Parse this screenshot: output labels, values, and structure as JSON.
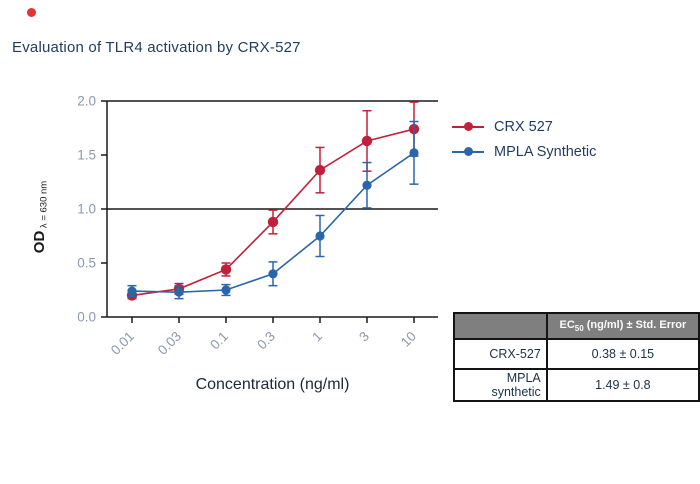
{
  "red_dot": {
    "color": "#e8312e"
  },
  "title": "Evaluation of TLR4 activation by CRX-527",
  "chart_data": {
    "type": "line",
    "xlabel": "Concentration (ng/ml)",
    "ylabel_main": "OD",
    "ylabel_sub": "λ = 630 nm",
    "x_categories": [
      "0.01",
      "0.03",
      "0.1",
      "0.3",
      "1",
      "3",
      "10"
    ],
    "x_scale": "log-categorical",
    "yticks": [
      "0.0",
      "0.5",
      "1.0",
      "1.5",
      "2.0"
    ],
    "ylim": [
      0,
      2
    ],
    "reference_lines": [
      1.0,
      2.0
    ],
    "grid": "off",
    "legend_position": "right-top",
    "series": [
      {
        "name": "CRX 527",
        "color": "#c2203a",
        "values": [
          0.2,
          0.26,
          0.44,
          0.88,
          1.36,
          1.63,
          1.74
        ],
        "errors": [
          0.03,
          0.05,
          0.06,
          0.11,
          0.21,
          0.28,
          0.25
        ]
      },
      {
        "name": "MPLA Synthetic",
        "color": "#2a66ac",
        "values": [
          0.24,
          0.23,
          0.25,
          0.4,
          0.75,
          1.22,
          1.52
        ],
        "errors": [
          0.05,
          0.06,
          0.05,
          0.11,
          0.19,
          0.21,
          0.29
        ]
      }
    ]
  },
  "table": {
    "header": {
      "prefix": "EC",
      "sub": "50",
      "suffix": " (ng/ml) ± Std. Error"
    },
    "rows": [
      {
        "label": "CRX-527",
        "value": "0.38 ± 0.15"
      },
      {
        "label": "MPLA synthetic",
        "value": "1.49 ± 0.8"
      }
    ]
  }
}
